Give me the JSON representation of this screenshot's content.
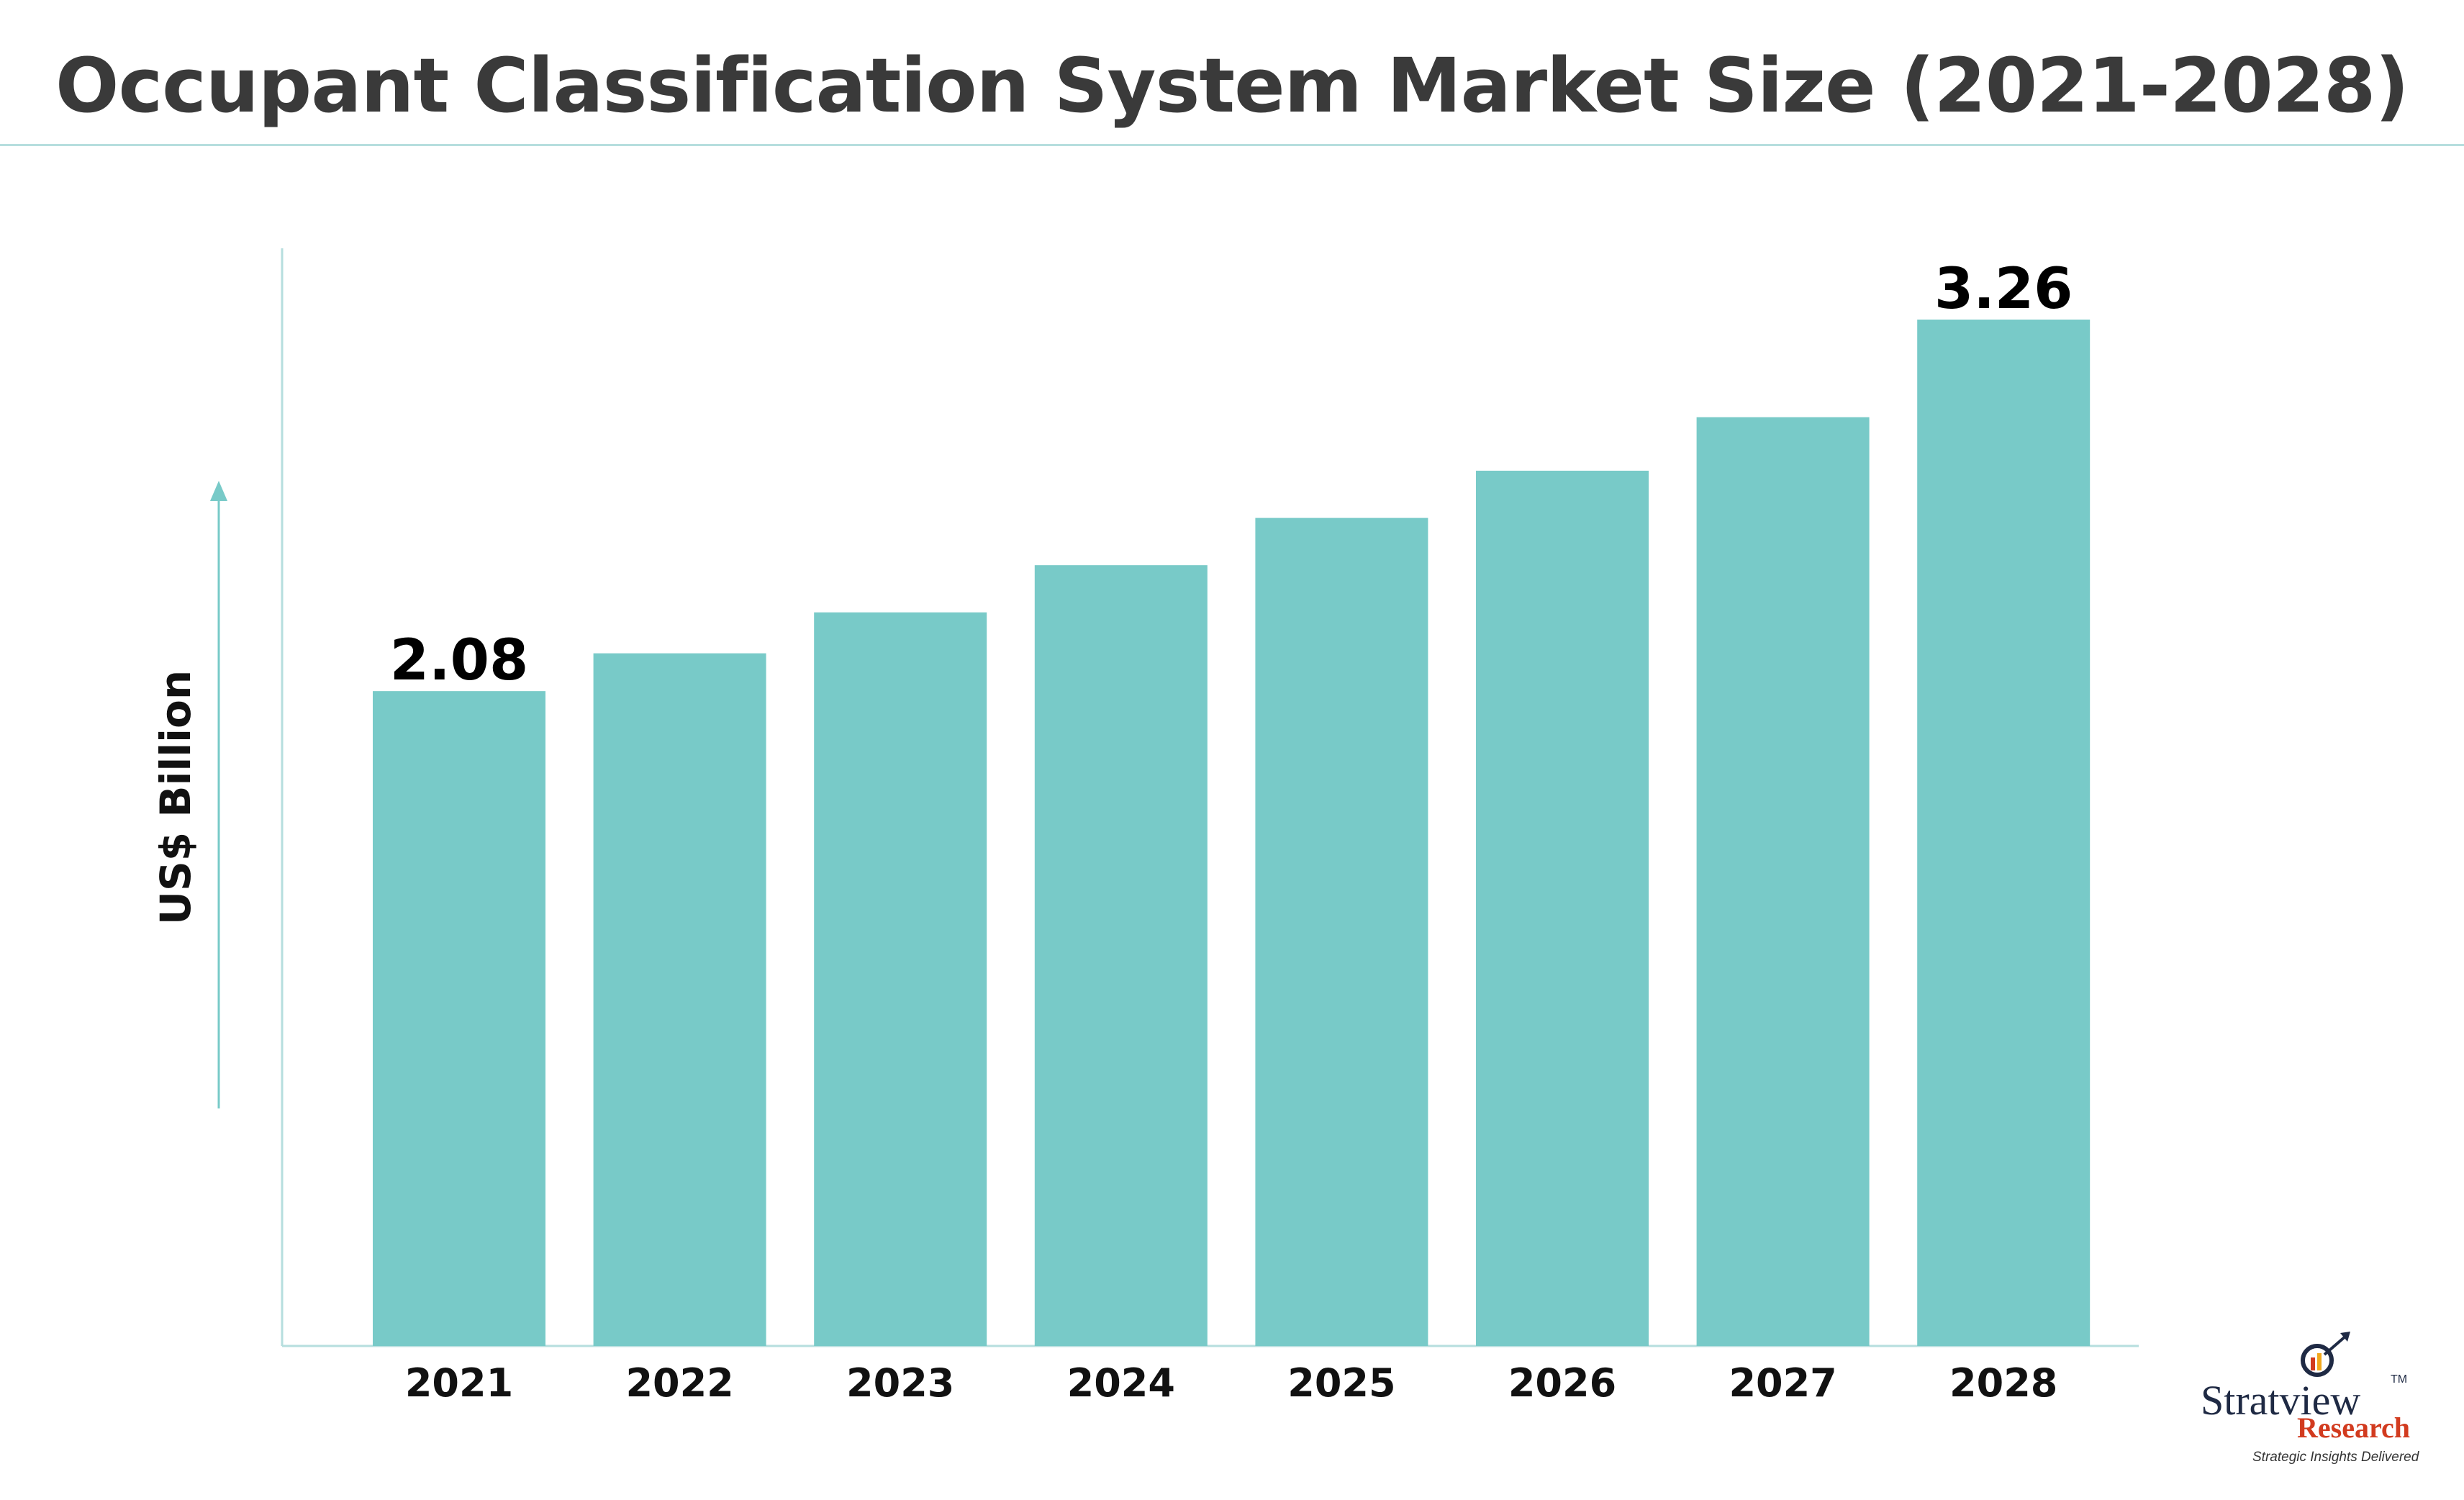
{
  "chart_data": {
    "type": "bar",
    "title": "Occupant Classification System Market Size (2021-2028)",
    "ylabel": "US$ Billion",
    "xlabel": "",
    "categories": [
      "2021",
      "2022",
      "2023",
      "2024",
      "2025",
      "2026",
      "2027",
      "2028"
    ],
    "values": [
      2.08,
      2.2,
      2.33,
      2.48,
      2.63,
      2.78,
      2.95,
      3.26
    ],
    "data_labels": [
      {
        "index": 0,
        "text": "2.08"
      },
      {
        "index": 7,
        "text": "3.26"
      }
    ],
    "ylim": [
      0,
      3.26
    ],
    "grid": false,
    "legend": "none",
    "bar_color": "#78cac8",
    "axis_color": "#b6dede"
  },
  "branding": {
    "name": "Stratview",
    "trademark": "TM",
    "sub": "Research",
    "tagline": "Strategic Insights Delivered",
    "colors": {
      "name": "#1f2a44",
      "sub": "#d23b1f"
    }
  }
}
